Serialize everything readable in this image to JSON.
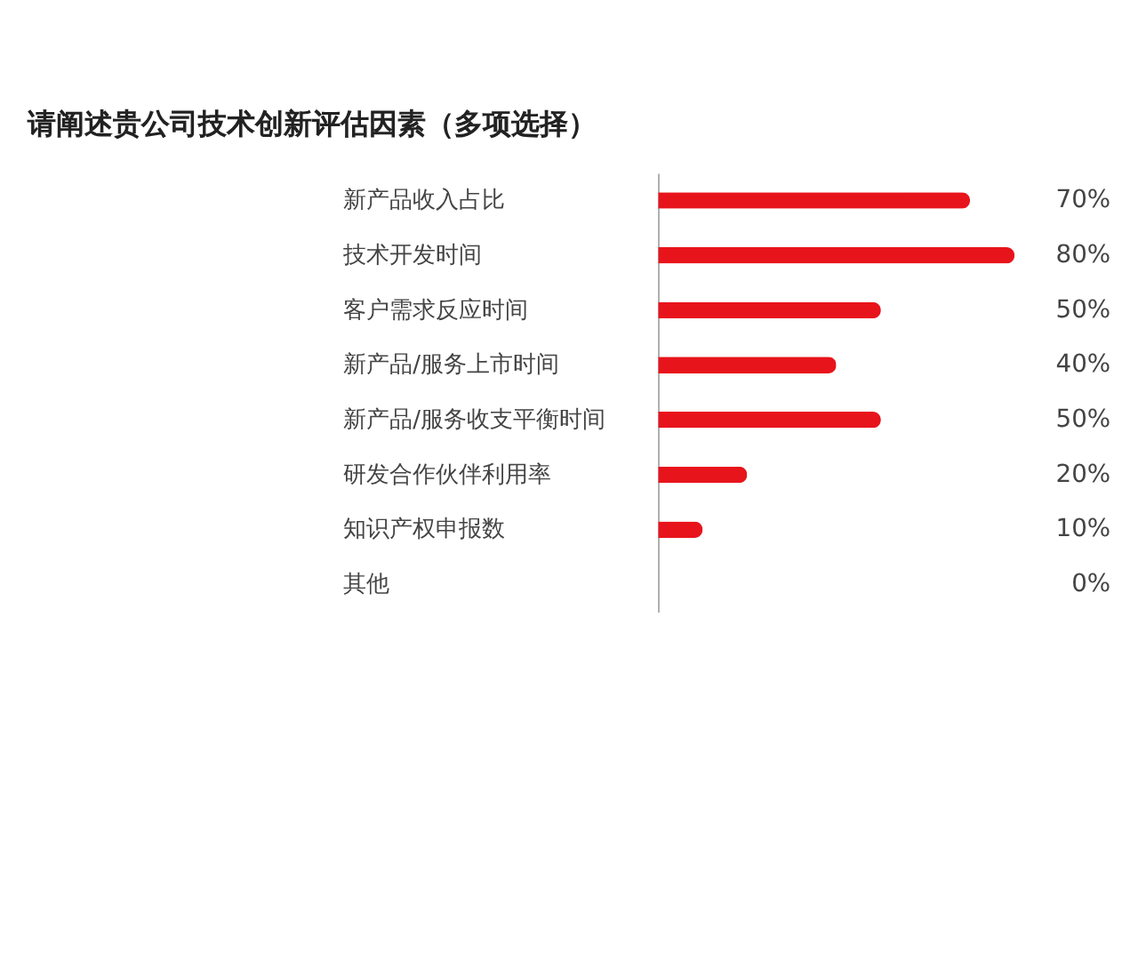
{
  "chart_data": {
    "type": "bar",
    "orientation": "horizontal",
    "title": "请阐述贵公司技术创新评估因素（多项选择）",
    "categories": [
      "新产品收入占比",
      "技术开发时间",
      "客户需求反应时间",
      "新产品/服务上市时间",
      "新产品/服务收支平衡时间",
      "研发合作伙伴利用率",
      "知识产权申报数",
      "其他"
    ],
    "values": [
      70,
      80,
      50,
      40,
      50,
      20,
      10,
      0
    ],
    "value_labels": [
      "70%",
      "80%",
      "50%",
      "40%",
      "50%",
      "20%",
      "10%",
      "0%"
    ],
    "color": "#e8141b",
    "xlim": [
      0,
      80
    ],
    "grid": false
  }
}
